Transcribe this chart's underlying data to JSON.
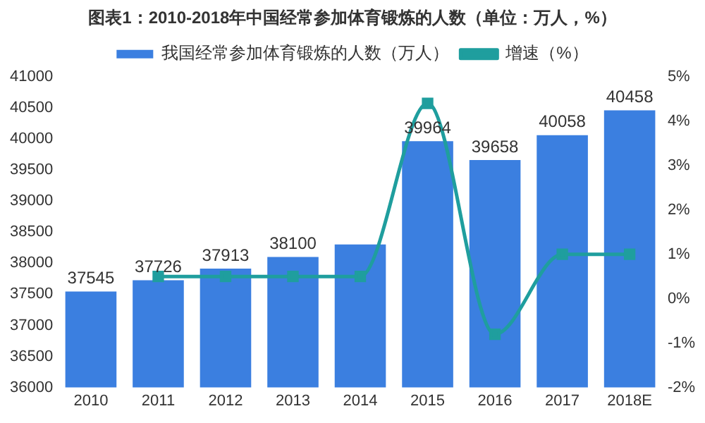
{
  "chart_data": {
    "type": "bar",
    "title": "图表1：2010-2018年中国经常参加体育锻炼的人数（单位：万人，%）",
    "categories": [
      "2010",
      "2011",
      "2012",
      "2013",
      "2014",
      "2015",
      "2016",
      "2017",
      "2018E"
    ],
    "series": [
      {
        "name": "我国经常参加体育锻炼的人数（万人）",
        "color": "#3b7fe0",
        "values": [
          37545,
          37726,
          37913,
          38100,
          38300,
          39964,
          39658,
          40058,
          40458
        ],
        "value_labels": [
          "37545",
          "37726",
          "37913",
          "38100",
          null,
          "39964",
          "39658",
          "40058",
          "40458"
        ]
      },
      {
        "name": "增速（%）",
        "type": "line",
        "axis": "y2",
        "color": "#1f9e9e",
        "marker": "square",
        "values": [
          null,
          0.5,
          0.5,
          0.5,
          0.5,
          4.4,
          -0.8,
          1.0,
          1.0
        ]
      }
    ],
    "ylim": [
      36000,
      41000
    ],
    "yticks": [
      36000,
      36500,
      37000,
      37500,
      38000,
      38500,
      39000,
      39500,
      40000,
      40500,
      41000
    ],
    "y2lim": [
      -2,
      5
    ],
    "y2ticks": [
      {
        "value": -2,
        "label": "-2%"
      },
      {
        "value": -1,
        "label": "-1%"
      },
      {
        "value": 0,
        "label": "0%"
      },
      {
        "value": 1,
        "label": "1%"
      },
      {
        "value": 2,
        "label": "2%"
      },
      {
        "value": 3,
        "label": "3%"
      },
      {
        "value": 4,
        "label": "4%"
      },
      {
        "value": 5,
        "label": "5%"
      }
    ],
    "grid": false,
    "legend": "top"
  }
}
